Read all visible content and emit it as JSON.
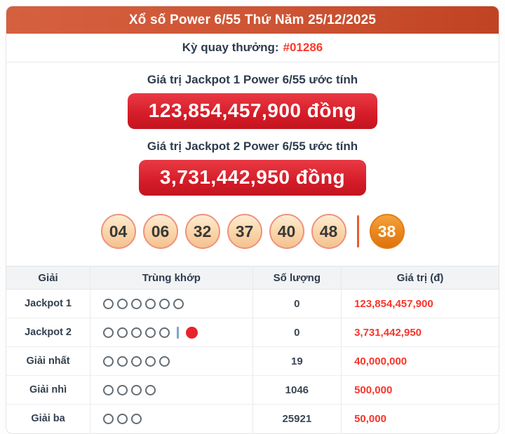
{
  "header": {
    "title": "Xổ số Power 6/55 Thứ Năm 25/12/2025"
  },
  "draw": {
    "label": "Kỳ quay thưởng:",
    "id": "#01286"
  },
  "jackpot1": {
    "title": "Giá trị Jackpot 1 Power 6/55 ước tính",
    "amount": "123,854,457,900 đồng"
  },
  "jackpot2": {
    "title": "Giá trị Jackpot 2 Power 6/55 ước tính",
    "amount": "3,731,442,950 đồng"
  },
  "numbers": {
    "main": [
      "04",
      "06",
      "32",
      "37",
      "40",
      "48"
    ],
    "power": "38"
  },
  "table": {
    "headers": [
      "Giải",
      "Trùng khớp",
      "Số lượng",
      "Giá trị (đ)"
    ],
    "rows": [
      {
        "prize": "Jackpot 1",
        "match_open": 6,
        "match_power": false,
        "count": "0",
        "value": "123,854,457,900"
      },
      {
        "prize": "Jackpot 2",
        "match_open": 5,
        "match_power": true,
        "count": "0",
        "value": "3,731,442,950"
      },
      {
        "prize": "Giải nhất",
        "match_open": 5,
        "match_power": false,
        "count": "19",
        "value": "40,000,000"
      },
      {
        "prize": "Giải nhì",
        "match_open": 4,
        "match_power": false,
        "count": "1046",
        "value": "500,000"
      },
      {
        "prize": "Giải ba",
        "match_open": 3,
        "match_power": false,
        "count": "25921",
        "value": "50,000"
      }
    ]
  },
  "colors": {
    "header_gradient_left": "#d5603f",
    "header_gradient_right": "#c04323",
    "badge_red": "#d51c28",
    "accent_red_text": "#f8352a",
    "ball_peach": "#f5c191",
    "ball_power_orange": "#e0720e",
    "navy_text": "#2f3c4e"
  }
}
